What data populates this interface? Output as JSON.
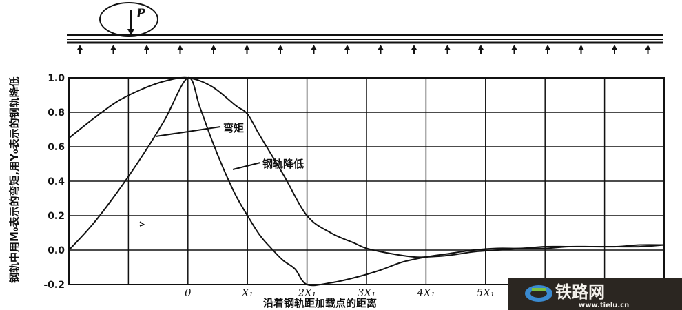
{
  "chart_data": {
    "type": "line",
    "xlabel": "沿着钢轨距加载点的距离",
    "ylabel": "钢轨中用M₀表示的弯矩,用Y₀表示的钢轨降低",
    "x_tick_labels": [
      "0",
      "X₁",
      "2X₁",
      "3X₁",
      "4X₁",
      "5X₁"
    ],
    "y_tick_labels": [
      "1.0",
      "0.8",
      "0.6",
      "0.4",
      "0.2",
      "0.0",
      "-0.2"
    ],
    "ylim": [
      -0.2,
      1.0
    ],
    "xlim": [
      -2,
      8
    ],
    "grid": true,
    "load_label": "P",
    "series": [
      {
        "name": "弯矩",
        "x": [
          -2,
          -1.6,
          -1.2,
          -0.8,
          -0.4,
          0,
          0.2,
          0.4,
          0.6,
          0.8,
          1.0,
          1.2,
          1.4,
          1.6,
          1.8,
          2.0,
          2.4,
          2.8,
          3.2,
          3.6,
          4.0,
          4.4,
          4.8,
          5.2,
          5.6,
          6.0,
          6.4,
          6.8,
          7.2,
          7.6,
          8.0
        ],
        "values": [
          0.0,
          0.15,
          0.33,
          0.53,
          0.75,
          1.0,
          0.83,
          0.64,
          0.47,
          0.32,
          0.2,
          0.09,
          0.01,
          -0.06,
          -0.11,
          -0.2,
          -0.19,
          -0.16,
          -0.12,
          -0.07,
          -0.04,
          -0.02,
          -0.0,
          0.01,
          0.01,
          0.02,
          0.02,
          0.02,
          0.02,
          0.03,
          0.03
        ]
      },
      {
        "name": "钢轨降低",
        "x": [
          -2,
          -1.6,
          -1.2,
          -0.8,
          -0.4,
          0,
          0.4,
          0.8,
          1.0,
          1.2,
          1.6,
          2.0,
          2.4,
          2.8,
          3.0,
          3.4,
          3.8,
          4.0,
          4.4,
          4.8,
          5.2,
          5.6,
          6.0,
          6.4,
          6.8,
          7.2,
          7.6,
          8.0
        ],
        "values": [
          0.65,
          0.76,
          0.86,
          0.93,
          0.98,
          1.0,
          0.95,
          0.84,
          0.79,
          0.67,
          0.44,
          0.2,
          0.1,
          0.04,
          0.01,
          -0.02,
          -0.04,
          -0.04,
          -0.03,
          -0.01,
          0.0,
          0.01,
          0.01,
          0.02,
          0.02,
          0.02,
          0.02,
          0.03
        ]
      }
    ]
  },
  "labels": {
    "moment": "弯矩",
    "deflection": "钢轨降低"
  },
  "watermark": {
    "text": "铁路网",
    "url": "www.tielu.cn",
    "colors": {
      "bg": "#2b2621",
      "text": "#f4f1ec",
      "accent": "#3a8ad0"
    }
  }
}
